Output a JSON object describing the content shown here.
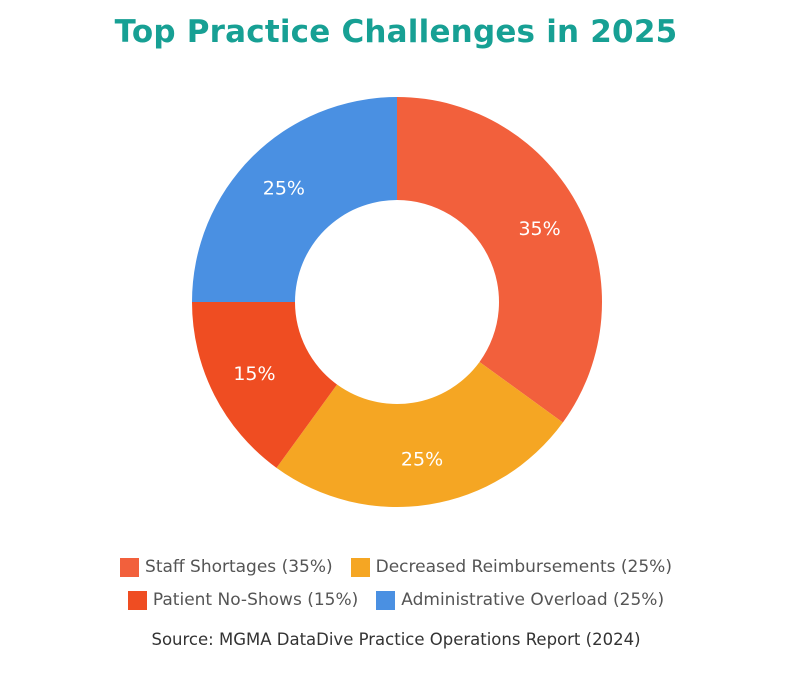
{
  "chart_data": {
    "type": "pie",
    "title": "Top Practice Challenges in 2025",
    "slices": [
      {
        "label": "Staff Shortages",
        "value": 35,
        "color": "#f2603c",
        "data_label": "35%",
        "legend": "Staff Shortages (35%)"
      },
      {
        "label": "Decreased Reimbursements",
        "value": 25,
        "color": "#f5a623",
        "data_label": "25%",
        "legend": "Decreased Reimbursements (25%)"
      },
      {
        "label": "Patient No-Shows",
        "value": 15,
        "color": "#ef4d22",
        "data_label": "15%",
        "legend": "Patient No-Shows (15%)"
      },
      {
        "label": "Administrative Overload",
        "value": 25,
        "color": "#4a90e2",
        "data_label": "25%",
        "legend": "Administrative Overload (25%)"
      }
    ],
    "legend_placement": "bottom",
    "source": "Source: MGMA DataDive Practice Operations Report (2024)"
  }
}
